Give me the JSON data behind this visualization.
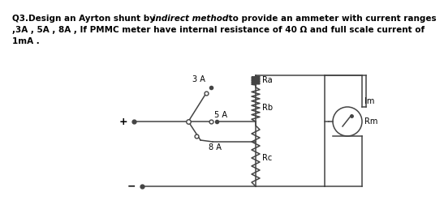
{
  "bg_color": "#ffffff",
  "text_color": "#1a1a1a",
  "circuit_color": "#444444",
  "title_s1": "Q3.Design an Ayrton shunt by ",
  "title_s2": "indirect method",
  "title_s3": " to provide an ammeter with current ranges",
  "title_line2": ",3A , 5A , 8A , If PMMC meter have internal resistance of 40 Ω and full scale current of",
  "title_line3": "1mA .",
  "label_3A": "3 A",
  "label_5A": "5 A",
  "label_8A": "8 A",
  "label_Ra": "Ra",
  "label_Rb": "Rb",
  "label_Rc": "Rc",
  "label_Im": "Im",
  "label_Rm": "Rm",
  "label_plus": "+",
  "label_minus": "−",
  "title_fontsize": 7.5,
  "label_fontsize": 7.0
}
